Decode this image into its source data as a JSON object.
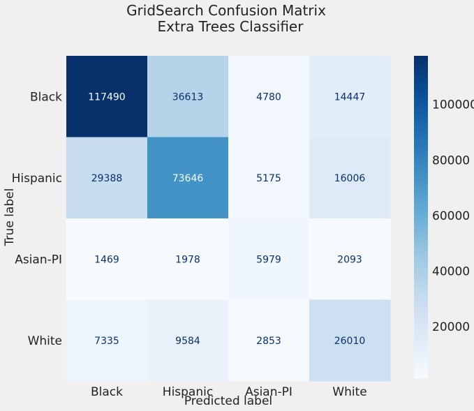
{
  "chart_data": {
    "type": "heatmap",
    "title_line1": "GridSearch Confusion Matrix",
    "title_line2": "Extra Trees Classifier",
    "xlabel": "Predicted label",
    "ylabel": "True label",
    "x_categories": [
      "Black",
      "Hispanic",
      "Asian-PI",
      "White"
    ],
    "y_categories": [
      "Black",
      "Hispanic",
      "Asian-PI",
      "White"
    ],
    "values": [
      [
        117490,
        36613,
        4780,
        14447
      ],
      [
        29388,
        73646,
        5175,
        16006
      ],
      [
        1469,
        1978,
        5979,
        2093
      ],
      [
        7335,
        9584,
        2853,
        26010
      ]
    ],
    "colormap": "Blues",
    "colorbar": {
      "range": [
        1469,
        117490
      ],
      "ticks": [
        20000,
        40000,
        60000,
        80000,
        100000
      ]
    },
    "grid": false
  }
}
